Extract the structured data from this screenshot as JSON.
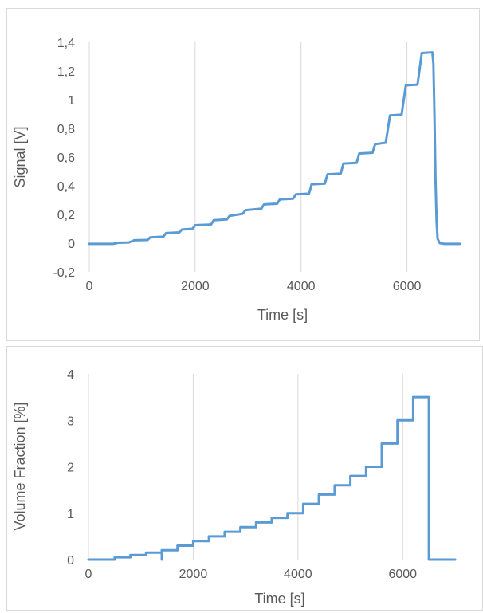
{
  "chart_data": [
    {
      "type": "line",
      "title": "",
      "xlabel": "Time [s]",
      "ylabel": "Signal [V]",
      "xlim": [
        0,
        7000
      ],
      "ylim": [
        -0.2,
        1.4
      ],
      "x_ticks": [
        0,
        2000,
        4000,
        6000
      ],
      "x_tick_labels": [
        "0",
        "2000",
        "4000",
        "6000"
      ],
      "y_ticks": [
        -0.2,
        0,
        0.2,
        0.4,
        0.6,
        0.8,
        1,
        1.2,
        1.4
      ],
      "y_tick_labels": [
        "-0,2",
        "0",
        "0,2",
        "0,4",
        "0,6",
        "0,8",
        "1",
        "1,2",
        "1,4"
      ],
      "grid": "vertical",
      "color": "#5b9bd5",
      "series": [
        {
          "x": [
            0,
            450,
            550,
            750,
            850,
            1100,
            1150,
            1400,
            1450,
            1700,
            1750,
            1950,
            2000,
            2300,
            2350,
            2600,
            2650,
            2900,
            2950,
            3250,
            3300,
            3550,
            3600,
            3850,
            3900,
            4150,
            4200,
            4450,
            4500,
            4750,
            4800,
            5050,
            5100,
            5350,
            5400,
            5600,
            5680,
            5900,
            5980,
            6200,
            6280,
            6480,
            6500,
            6520,
            6540,
            6560,
            6580,
            6620,
            6700,
            7000
          ],
          "y": [
            -0.005,
            -0.005,
            0.003,
            0.005,
            0.02,
            0.022,
            0.04,
            0.045,
            0.07,
            0.075,
            0.095,
            0.1,
            0.125,
            0.13,
            0.16,
            0.165,
            0.19,
            0.205,
            0.23,
            0.24,
            0.27,
            0.275,
            0.305,
            0.31,
            0.34,
            0.345,
            0.41,
            0.415,
            0.48,
            0.485,
            0.555,
            0.56,
            0.625,
            0.63,
            0.69,
            0.7,
            0.89,
            0.895,
            1.1,
            1.105,
            1.325,
            1.33,
            1.25,
            0.9,
            0.45,
            0.15,
            0.03,
            0.0,
            -0.005,
            -0.005
          ]
        }
      ]
    },
    {
      "type": "line",
      "title": "",
      "xlabel": "Time [s]",
      "ylabel": "Volume Fraction [%]",
      "xlim": [
        0,
        7000
      ],
      "ylim": [
        0,
        4
      ],
      "x_ticks": [
        0,
        2000,
        4000,
        6000
      ],
      "x_tick_labels": [
        "0",
        "2000",
        "4000",
        "6000"
      ],
      "y_ticks": [
        0,
        1,
        2,
        3,
        4
      ],
      "y_tick_labels": [
        "0",
        "1",
        "2",
        "3",
        "4"
      ],
      "grid": "vertical",
      "color": "#5b9bd5",
      "series": [
        {
          "x": [
            0,
            500,
            500,
            800,
            800,
            1100,
            1100,
            1400,
            1400,
            1400,
            1400,
            1700,
            1700,
            2000,
            2000,
            2300,
            2300,
            2600,
            2600,
            2900,
            2900,
            3200,
            3200,
            3500,
            3500,
            3800,
            3800,
            4100,
            4100,
            4400,
            4400,
            4700,
            4700,
            5000,
            5000,
            5300,
            5300,
            5600,
            5600,
            5900,
            5900,
            6200,
            6200,
            6500,
            6500,
            7000
          ],
          "y": [
            0,
            0,
            0.05,
            0.05,
            0.1,
            0.1,
            0.15,
            0.15,
            0,
            0.2,
            0.2,
            0.2,
            0.3,
            0.3,
            0.4,
            0.4,
            0.5,
            0.5,
            0.6,
            0.6,
            0.7,
            0.7,
            0.8,
            0.8,
            0.9,
            0.9,
            1.0,
            1.0,
            1.2,
            1.2,
            1.4,
            1.4,
            1.6,
            1.6,
            1.8,
            1.8,
            2.0,
            2.0,
            2.5,
            2.5,
            3.0,
            3.0,
            3.5,
            3.5,
            0,
            0
          ]
        }
      ]
    }
  ]
}
